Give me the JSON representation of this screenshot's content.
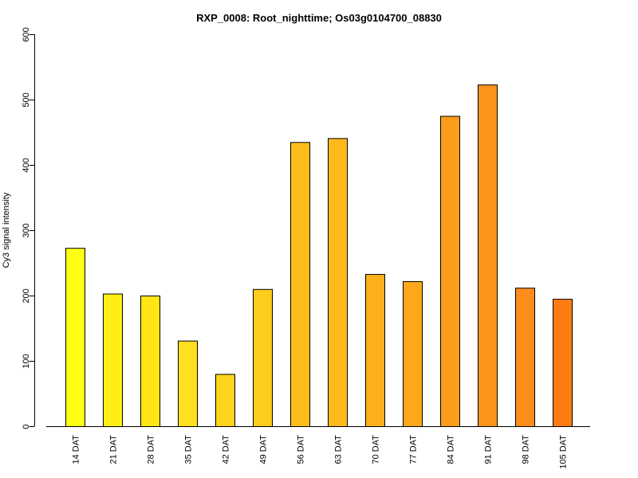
{
  "chart_data": {
    "type": "bar",
    "title": "RXP_0008: Root_nighttime; Os03g0104700_08830",
    "xlabel": "",
    "ylabel": "Cy3 signal intensity",
    "ylim": [
      0,
      600
    ],
    "yticks": [
      0,
      100,
      200,
      300,
      400,
      500,
      600
    ],
    "categories": [
      "14 DAT",
      "21 DAT",
      "28 DAT",
      "35 DAT",
      "42 DAT",
      "49 DAT",
      "56 DAT",
      "63 DAT",
      "70 DAT",
      "77 DAT",
      "84 DAT",
      "91 DAT",
      "98 DAT",
      "105 DAT"
    ],
    "values": [
      273,
      203,
      200,
      131,
      80,
      210,
      435,
      441,
      233,
      222,
      475,
      523,
      212,
      195
    ],
    "colors": [
      "#FFFF14",
      "#FFEE14",
      "#FFE614",
      "#FFE01C",
      "#FDD31C",
      "#FDCC1C",
      "#FDBE1C",
      "#FDB81C",
      "#FDB01C",
      "#FDA81C",
      "#FC9C1C",
      "#FC941C",
      "#FC8C1C",
      "#FC7C14"
    ],
    "grid": false,
    "legend": "none"
  }
}
